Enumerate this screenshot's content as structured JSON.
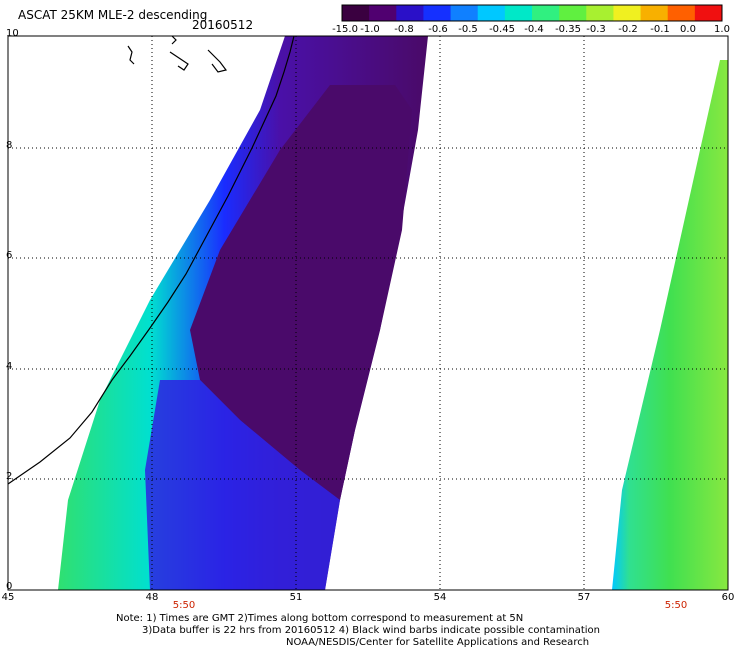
{
  "header": {
    "title": "ASCAT 25KM MLE-2 descending",
    "date": "20160512"
  },
  "colorbar": {
    "labels": [
      "-15.0",
      "-1.0",
      "-0.8",
      "-0.6",
      "-0.5",
      "-0.45",
      "-0.4",
      "-0.35",
      "-0.3",
      "-0.2",
      "-0.1",
      "0.0",
      "1.0"
    ],
    "colors": [
      "#3a0040",
      "#500070",
      "#2a10c8",
      "#1530ff",
      "#1080ff",
      "#00c8ff",
      "#00e8c8",
      "#30f080",
      "#60f040",
      "#a8f030",
      "#f0f020",
      "#f8b000",
      "#ff6000",
      "#f01010"
    ]
  },
  "axes": {
    "lat_ticks": [
      "10",
      "8",
      "6",
      "4",
      "2",
      "0"
    ],
    "lon_ticks": [
      "45",
      "48",
      "51",
      "54",
      "57",
      "60"
    ]
  },
  "swath_times": [
    "5:50",
    "5:50"
  ],
  "notes": [
    "Note: 1) Times are GMT 2)Times along bottom correspond to measurement at 5N",
    "3)Data buffer is 22 hrs from 20160512 4) Black wind barbs indicate possible contamination",
    "NOAA/NESDIS/Center for Satellite Applications and Research"
  ]
}
